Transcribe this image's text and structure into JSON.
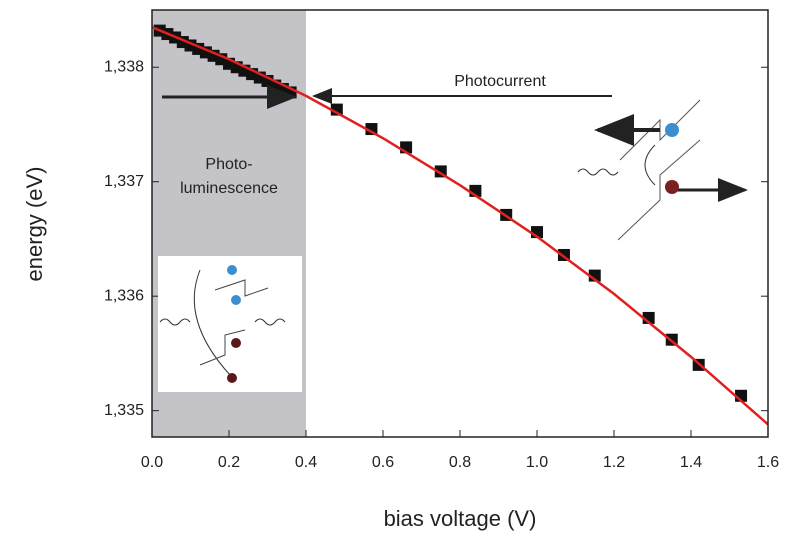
{
  "chart_data": {
    "type": "scatter",
    "xlabel": "bias voltage (V)",
    "ylabel": "energy (eV)",
    "xlim": [
      0,
      1.6
    ],
    "ylim": [
      1.33477,
      1.3385
    ],
    "xticks": [
      {
        "value": 0,
        "label": "0.0"
      },
      0.2,
      0.4,
      0.6,
      0.8,
      {
        "value": 1,
        "label": "1.0"
      },
      1.2,
      1.4,
      1.6
    ],
    "yticks": [
      {
        "value": 1.335,
        "label": "1,335"
      },
      {
        "value": 1.336,
        "label": "1,336"
      },
      {
        "value": 1.337,
        "label": "1,337"
      },
      {
        "value": 1.338,
        "label": "1,338"
      }
    ],
    "shaded_region": [
      0,
      0.4
    ],
    "shade_color": "#c4c4c8",
    "annotations": [
      "Photocurrent",
      "Photo-",
      "luminescence"
    ],
    "series": [
      {
        "kind": "points",
        "color": "#111111",
        "x": [
          0.02,
          0.04,
          0.06,
          0.08,
          0.1,
          0.12,
          0.14,
          0.16,
          0.18,
          0.2,
          0.22,
          0.24,
          0.26,
          0.28,
          0.3,
          0.32,
          0.34,
          0.36
        ],
        "values": [
          1.33832,
          1.33829,
          1.33826,
          1.33822,
          1.33819,
          1.33816,
          1.33813,
          1.3381,
          1.33807,
          1.33803,
          1.338,
          1.33797,
          1.33794,
          1.33791,
          1.33788,
          1.33784,
          1.33781,
          1.33778
        ]
      },
      {
        "kind": "points",
        "color": "#111111",
        "x": [
          0.48,
          0.57,
          0.66,
          0.75,
          0.84,
          0.92,
          1.0,
          1.07,
          1.15,
          1.29,
          1.35,
          1.42,
          1.53
        ],
        "values": [
          1.33763,
          1.33746,
          1.3373,
          1.33709,
          1.33692,
          1.33671,
          1.33656,
          1.33636,
          1.33618,
          1.33581,
          1.33562,
          1.3354,
          1.33513
        ]
      },
      {
        "kind": "line",
        "color": "#e02020",
        "x": [
          0,
          0.2,
          0.4,
          0.6,
          0.8,
          1.0,
          1.2,
          1.4,
          1.6
        ],
        "values": [
          1.33835,
          1.33807,
          1.33775,
          1.33738,
          1.33697,
          1.33652,
          1.33602,
          1.33547,
          1.33488
        ]
      }
    ]
  }
}
